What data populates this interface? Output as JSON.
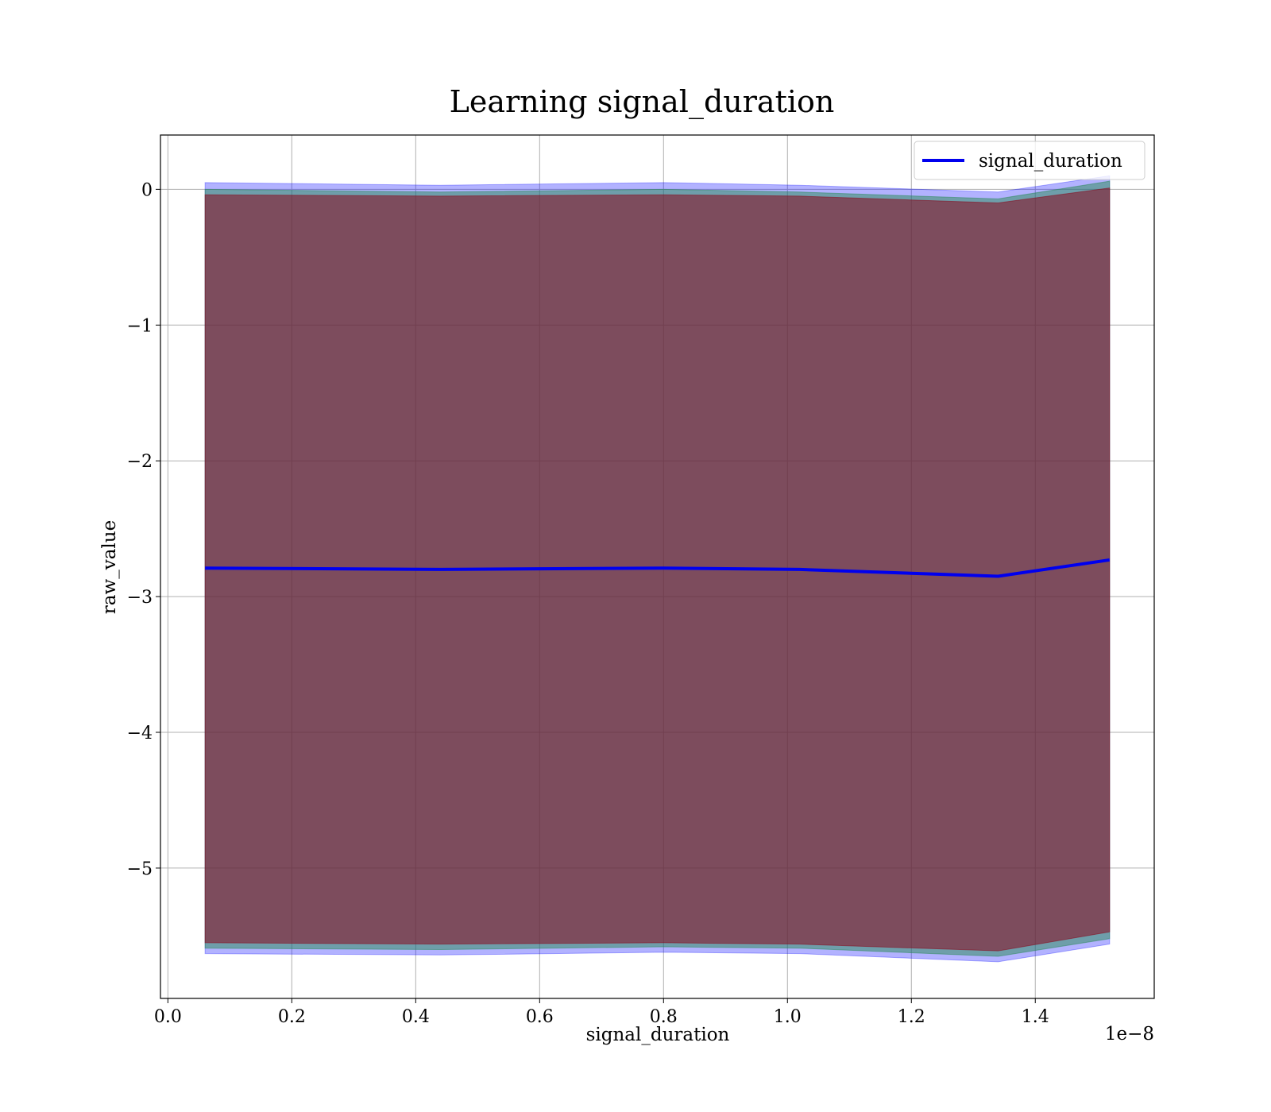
{
  "chart_data": {
    "type": "line",
    "title": "Learning signal_duration",
    "xlabel": "signal_duration",
    "ylabel": "raw_value",
    "x_offset_label": "1e−8",
    "xlim": [
      -0.012,
      1.592
    ],
    "ylim": [
      -5.96,
      0.4
    ],
    "x_ticks": [
      0.0,
      0.2,
      0.4,
      0.6,
      0.8,
      1.0,
      1.2,
      1.4
    ],
    "x_tick_labels": [
      "0.0",
      "0.2",
      "0.4",
      "0.6",
      "0.8",
      "1.0",
      "1.2",
      "1.4"
    ],
    "y_ticks": [
      0,
      -1,
      -2,
      -3,
      -4,
      -5
    ],
    "y_tick_labels": [
      "0",
      "−1",
      "−2",
      "−3",
      "−4",
      "−5"
    ],
    "grid": true,
    "legend_position": "top-right",
    "x": [
      0.06,
      0.44,
      0.8,
      1.02,
      1.34,
      1.52
    ],
    "series": [
      {
        "name": "signal_duration",
        "color": "#0000ee",
        "values": [
          -2.79,
          -2.8,
          -2.79,
          -2.8,
          -2.85,
          -2.73
        ]
      }
    ],
    "bands": [
      {
        "color": "#0000ff",
        "opacity": 0.3,
        "upper": [
          0.05,
          0.03,
          0.05,
          0.03,
          -0.02,
          0.1
        ],
        "lower": [
          -5.63,
          -5.64,
          -5.62,
          -5.63,
          -5.69,
          -5.56
        ]
      },
      {
        "color": "#2a8a55",
        "opacity": 0.5,
        "upper": [
          0.0,
          -0.02,
          0.0,
          -0.02,
          -0.07,
          0.06
        ],
        "lower": [
          -5.59,
          -5.6,
          -5.58,
          -5.59,
          -5.65,
          -5.52
        ]
      },
      {
        "color": "#8b0a1e",
        "opacity": 0.55,
        "upper": [
          -0.04,
          -0.05,
          -0.04,
          -0.05,
          -0.1,
          0.01
        ],
        "lower": [
          -5.55,
          -5.56,
          -5.55,
          -5.56,
          -5.61,
          -5.47
        ]
      }
    ]
  }
}
